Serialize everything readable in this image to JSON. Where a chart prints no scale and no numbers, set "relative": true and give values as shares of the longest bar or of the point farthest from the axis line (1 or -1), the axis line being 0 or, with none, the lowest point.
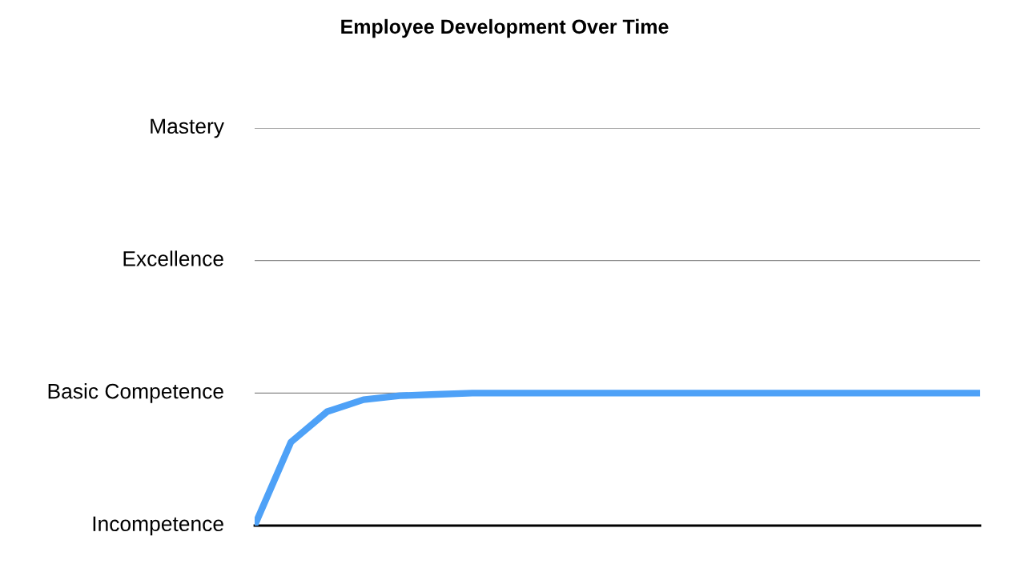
{
  "chart_data": {
    "type": "line",
    "title": "Employee Development Over Time",
    "categories": [
      null,
      null,
      null,
      null,
      null,
      null,
      null,
      null,
      null,
      null,
      null,
      null,
      null,
      null,
      null,
      null,
      null,
      null,
      null,
      null,
      null
    ],
    "series": [
      {
        "color": "#4ea1f7",
        "values": [
          0,
          0.63,
          0.86,
          0.95,
          0.98,
          0.99,
          1,
          1,
          1,
          1,
          1,
          1,
          1,
          1,
          1,
          1,
          1,
          1,
          1,
          1,
          1
        ]
      }
    ],
    "relative": true,
    "annotations": [
      "Incompetence",
      "Basic Competence",
      "Excellence",
      "Mastery"
    ],
    "grid": "y",
    "marker": "none",
    "line_style": "solid",
    "legend": false
  }
}
